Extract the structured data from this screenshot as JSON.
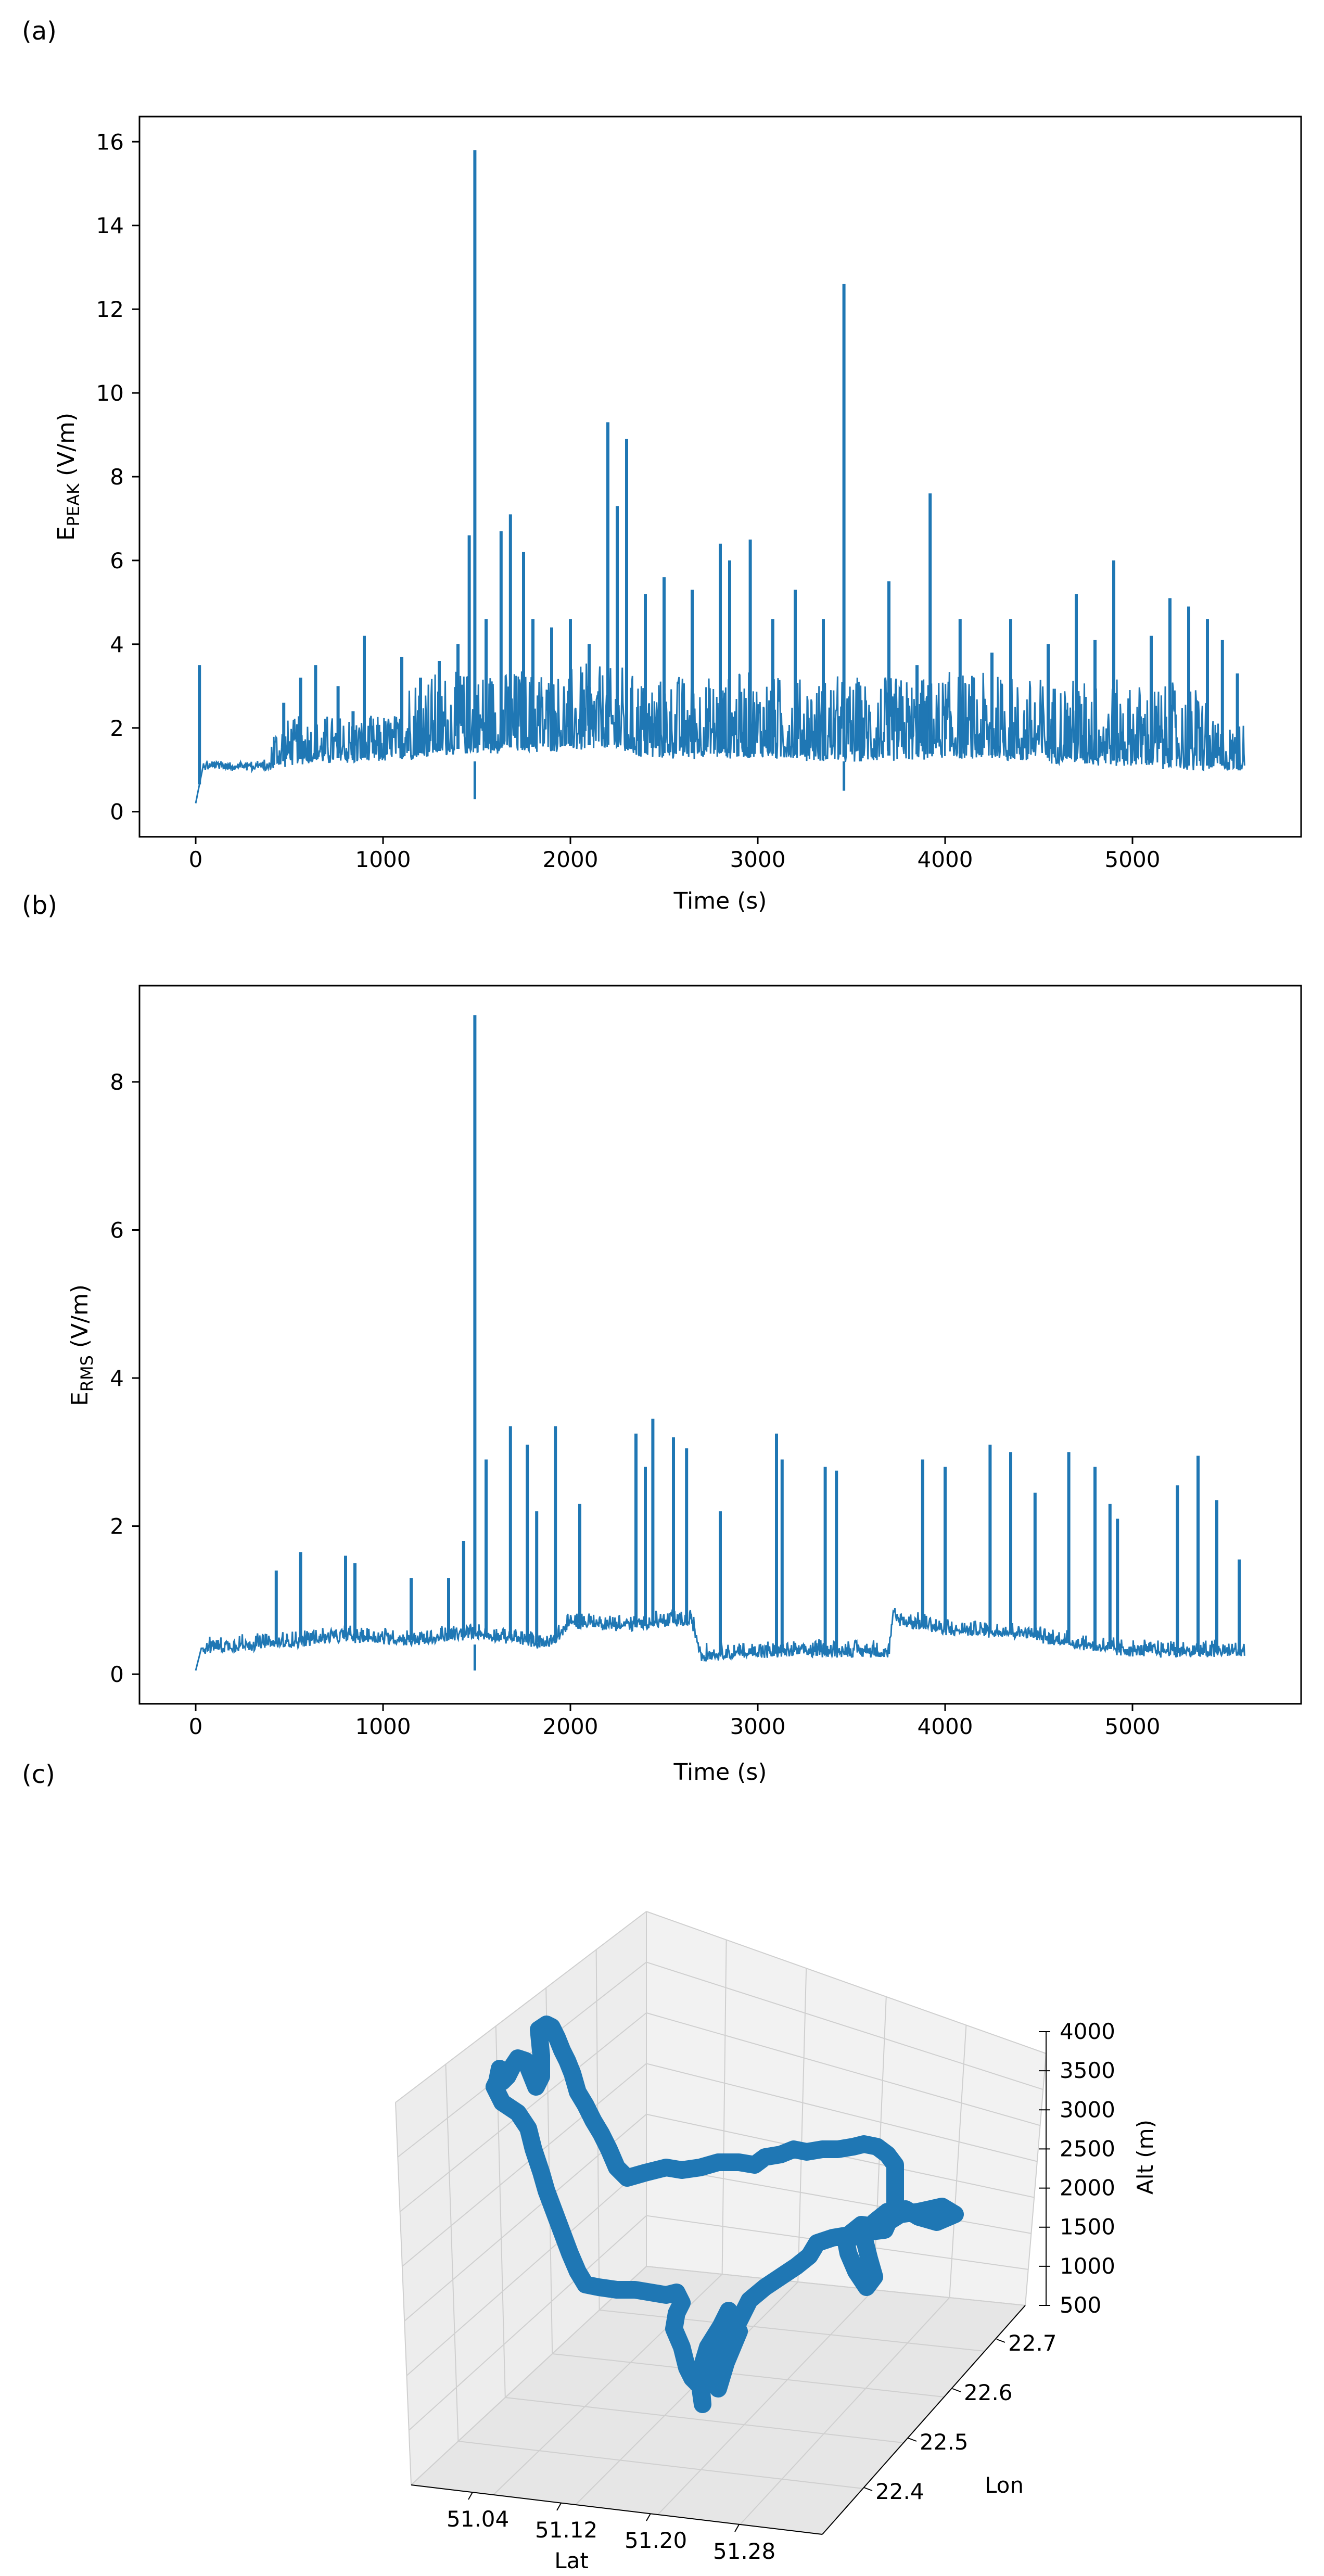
{
  "chart_data": [
    {
      "panel_label": "(a)",
      "type": "line",
      "xlabel": "Time (s)",
      "ylabel_main": "E",
      "ylabel_sub": "PEAK",
      "ylabel_unit": " (V/m)",
      "xlim": [
        -300,
        5900
      ],
      "ylim": [
        -0.6,
        16.6
      ],
      "xticks": [
        0,
        1000,
        2000,
        3000,
        4000,
        5000
      ],
      "yticks": [
        0,
        2,
        4,
        6,
        8,
        10,
        12,
        14,
        16
      ],
      "color": "#1f77b4",
      "baseline": [
        [
          0,
          0.2
        ],
        [
          40,
          1.1
        ],
        [
          400,
          1.1
        ],
        [
          500,
          1.25
        ],
        [
          1000,
          1.3
        ],
        [
          1400,
          1.5
        ],
        [
          2200,
          1.6
        ],
        [
          2400,
          1.4
        ],
        [
          3000,
          1.4
        ],
        [
          3500,
          1.3
        ],
        [
          4000,
          1.4
        ],
        [
          4500,
          1.3
        ],
        [
          5000,
          1.2
        ],
        [
          5300,
          1.1
        ],
        [
          5600,
          1.1
        ]
      ],
      "peaks": [
        {
          "x": 20,
          "y": 3.5
        },
        {
          "x": 470,
          "y": 2.6
        },
        {
          "x": 560,
          "y": 3.2
        },
        {
          "x": 640,
          "y": 3.5
        },
        {
          "x": 760,
          "y": 3.0
        },
        {
          "x": 840,
          "y": 2.4
        },
        {
          "x": 900,
          "y": 4.2
        },
        {
          "x": 1100,
          "y": 3.7
        },
        {
          "x": 1200,
          "y": 3.2
        },
        {
          "x": 1300,
          "y": 3.6
        },
        {
          "x": 1400,
          "y": 4.0
        },
        {
          "x": 1460,
          "y": 6.6
        },
        {
          "x": 1490,
          "y": 15.8
        },
        {
          "x": 1550,
          "y": 4.6
        },
        {
          "x": 1630,
          "y": 6.7
        },
        {
          "x": 1680,
          "y": 7.1
        },
        {
          "x": 1750,
          "y": 6.2
        },
        {
          "x": 1800,
          "y": 4.6
        },
        {
          "x": 1900,
          "y": 4.4
        },
        {
          "x": 2000,
          "y": 4.6
        },
        {
          "x": 2100,
          "y": 4.0
        },
        {
          "x": 2200,
          "y": 9.3
        },
        {
          "x": 2250,
          "y": 7.3
        },
        {
          "x": 2300,
          "y": 8.9
        },
        {
          "x": 2400,
          "y": 5.2
        },
        {
          "x": 2500,
          "y": 5.6
        },
        {
          "x": 2650,
          "y": 5.3
        },
        {
          "x": 2800,
          "y": 6.4
        },
        {
          "x": 2850,
          "y": 6.0
        },
        {
          "x": 2960,
          "y": 6.5
        },
        {
          "x": 3080,
          "y": 4.6
        },
        {
          "x": 3200,
          "y": 5.3
        },
        {
          "x": 3350,
          "y": 4.6
        },
        {
          "x": 3460,
          "y": 12.6
        },
        {
          "x": 3700,
          "y": 5.5
        },
        {
          "x": 3850,
          "y": 3.5
        },
        {
          "x": 3920,
          "y": 7.6
        },
        {
          "x": 4080,
          "y": 4.6
        },
        {
          "x": 4250,
          "y": 3.8
        },
        {
          "x": 4350,
          "y": 4.6
        },
        {
          "x": 4550,
          "y": 4.0
        },
        {
          "x": 4700,
          "y": 5.2
        },
        {
          "x": 4800,
          "y": 4.1
        },
        {
          "x": 4900,
          "y": 6.0
        },
        {
          "x": 5100,
          "y": 4.2
        },
        {
          "x": 5200,
          "y": 5.1
        },
        {
          "x": 5300,
          "y": 4.9
        },
        {
          "x": 5400,
          "y": 4.6
        },
        {
          "x": 5480,
          "y": 4.1
        },
        {
          "x": 5560,
          "y": 3.3
        }
      ]
    },
    {
      "panel_label": "(b)",
      "type": "line",
      "xlabel": "Time (s)",
      "ylabel_main": "E",
      "ylabel_sub": "RMS",
      "ylabel_unit": " (V/m)",
      "xlim": [
        -300,
        5900
      ],
      "ylim": [
        -0.4,
        9.3
      ],
      "xticks": [
        0,
        1000,
        2000,
        3000,
        4000,
        5000
      ],
      "yticks": [
        0,
        2,
        4,
        6,
        8
      ],
      "color": "#1f77b4",
      "baseline": [
        [
          0,
          0.05
        ],
        [
          30,
          0.35
        ],
        [
          400,
          0.4
        ],
        [
          800,
          0.5
        ],
        [
          1200,
          0.45
        ],
        [
          1500,
          0.55
        ],
        [
          1900,
          0.4
        ],
        [
          2000,
          0.7
        ],
        [
          2300,
          0.65
        ],
        [
          2500,
          0.7
        ],
        [
          2650,
          0.7
        ],
        [
          2700,
          0.25
        ],
        [
          3100,
          0.3
        ],
        [
          3500,
          0.3
        ],
        [
          3700,
          0.3
        ],
        [
          3720,
          0.75
        ],
        [
          4000,
          0.6
        ],
        [
          4400,
          0.55
        ],
        [
          4700,
          0.4
        ],
        [
          5000,
          0.3
        ],
        [
          5600,
          0.3
        ]
      ],
      "peaks": [
        {
          "x": 430,
          "y": 1.4
        },
        {
          "x": 560,
          "y": 1.65
        },
        {
          "x": 800,
          "y": 1.6
        },
        {
          "x": 850,
          "y": 1.5
        },
        {
          "x": 1150,
          "y": 1.3
        },
        {
          "x": 1350,
          "y": 1.3
        },
        {
          "x": 1430,
          "y": 1.8
        },
        {
          "x": 1490,
          "y": 8.9
        },
        {
          "x": 1550,
          "y": 2.9
        },
        {
          "x": 1680,
          "y": 3.35
        },
        {
          "x": 1770,
          "y": 3.1
        },
        {
          "x": 1820,
          "y": 2.2
        },
        {
          "x": 1920,
          "y": 3.35
        },
        {
          "x": 2050,
          "y": 2.3
        },
        {
          "x": 2350,
          "y": 3.25
        },
        {
          "x": 2400,
          "y": 2.8
        },
        {
          "x": 2440,
          "y": 3.45
        },
        {
          "x": 2550,
          "y": 3.2
        },
        {
          "x": 2620,
          "y": 3.05
        },
        {
          "x": 2800,
          "y": 2.2
        },
        {
          "x": 3100,
          "y": 3.25
        },
        {
          "x": 3130,
          "y": 2.9
        },
        {
          "x": 3360,
          "y": 2.8
        },
        {
          "x": 3420,
          "y": 2.75
        },
        {
          "x": 3880,
          "y": 2.9
        },
        {
          "x": 4000,
          "y": 2.8
        },
        {
          "x": 4240,
          "y": 3.1
        },
        {
          "x": 4350,
          "y": 3.0
        },
        {
          "x": 4480,
          "y": 2.45
        },
        {
          "x": 4660,
          "y": 3.0
        },
        {
          "x": 4800,
          "y": 2.8
        },
        {
          "x": 4880,
          "y": 2.3
        },
        {
          "x": 4920,
          "y": 2.1
        },
        {
          "x": 5240,
          "y": 2.55
        },
        {
          "x": 5350,
          "y": 2.95
        },
        {
          "x": 5450,
          "y": 2.35
        },
        {
          "x": 5570,
          "y": 1.55
        }
      ]
    },
    {
      "panel_label": "(c)",
      "type": "line3d",
      "xlabel": "Lat",
      "ylabel": "Lon",
      "zlabel": "Alt (m)",
      "xlim": [
        51.0,
        51.32
      ],
      "ylim": [
        22.35,
        22.77
      ],
      "zlim": [
        500,
        4000
      ],
      "xticks": [
        "51.04",
        "51.12",
        "51.20",
        "51.28"
      ],
      "yticks": [
        "22.4",
        "22.5",
        "22.6",
        "22.7"
      ],
      "zticks": [
        "500",
        "1000",
        "1500",
        "2000",
        "2500",
        "3000",
        "3500",
        "4000"
      ],
      "color": "#1f77b4"
    }
  ]
}
